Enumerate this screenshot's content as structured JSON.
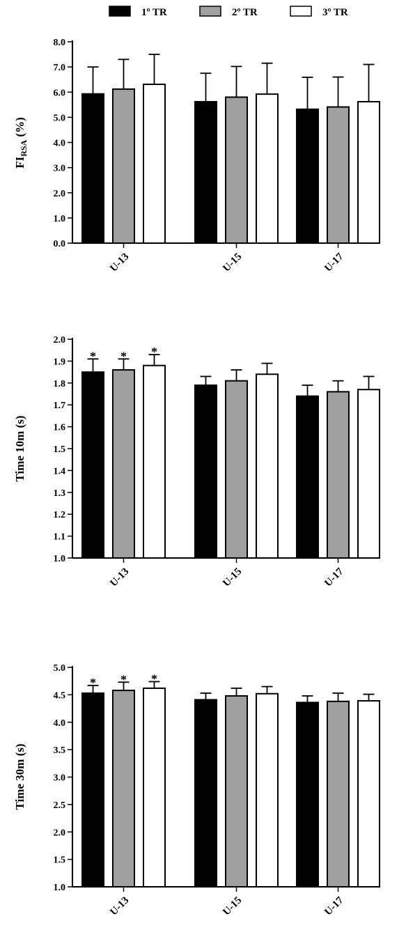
{
  "legend": [
    {
      "label": "1º TR",
      "color": "#000000"
    },
    {
      "label": "2º TR",
      "color": "#a0a0a0"
    },
    {
      "label": "3º TR",
      "color": "#ffffff"
    }
  ],
  "chart_data": [
    {
      "type": "bar",
      "ylabel_main": "FI",
      "ylabel_sub": "RSA",
      "ylabel_rest": " (%)",
      "categories": [
        "U-13",
        "U-15",
        "U-17"
      ],
      "ylim": [
        0.0,
        8.0
      ],
      "yticks": [
        "0.0",
        "1.0",
        "2.0",
        "3.0",
        "4.0",
        "5.0",
        "6.0",
        "7.0",
        "8.0"
      ],
      "series": [
        {
          "name": "1º TR",
          "values": [
            5.93,
            5.62,
            5.32
          ],
          "errors": [
            1.07,
            1.13,
            1.27
          ]
        },
        {
          "name": "2º TR",
          "values": [
            6.12,
            5.8,
            5.41
          ],
          "errors": [
            1.18,
            1.22,
            1.19
          ]
        },
        {
          "name": "3º TR",
          "values": [
            6.31,
            5.92,
            5.62
          ],
          "errors": [
            1.19,
            1.23,
            1.48
          ]
        }
      ],
      "annotations": []
    },
    {
      "type": "bar",
      "ylabel_main": "Time 10m (s)",
      "ylabel_sub": "",
      "ylabel_rest": "",
      "categories": [
        "U-13",
        "U-15",
        "U-17"
      ],
      "ylim": [
        1.0,
        2.0
      ],
      "yticks": [
        "1.0",
        "1.1",
        "1.2",
        "1.3",
        "1.4",
        "1.5",
        "1.6",
        "1.7",
        "1.8",
        "1.9",
        "2.0"
      ],
      "series": [
        {
          "name": "1º TR",
          "values": [
            1.85,
            1.79,
            1.74
          ],
          "errors": [
            0.06,
            0.04,
            0.05
          ]
        },
        {
          "name": "2º TR",
          "values": [
            1.86,
            1.81,
            1.76
          ],
          "errors": [
            0.05,
            0.05,
            0.05
          ]
        },
        {
          "name": "3º TR",
          "values": [
            1.88,
            1.84,
            1.77
          ],
          "errors": [
            0.05,
            0.05,
            0.06
          ]
        }
      ],
      "annotations": [
        {
          "text": "*",
          "series": 0,
          "category": 0
        },
        {
          "text": "*",
          "series": 1,
          "category": 0
        },
        {
          "text": "*",
          "series": 2,
          "category": 0
        }
      ]
    },
    {
      "type": "bar",
      "ylabel_main": "Time 30m (s)",
      "ylabel_sub": "",
      "ylabel_rest": "",
      "categories": [
        "U-13",
        "U-15",
        "U-17"
      ],
      "ylim": [
        1.0,
        5.0
      ],
      "yticks": [
        "1.0",
        "1.5",
        "2.0",
        "2.5",
        "3.0",
        "3.5",
        "4.0",
        "4.5",
        "5.0"
      ],
      "series": [
        {
          "name": "1º TR",
          "values": [
            4.53,
            4.41,
            4.36
          ],
          "errors": [
            0.14,
            0.12,
            0.12
          ]
        },
        {
          "name": "2º TR",
          "values": [
            4.58,
            4.48,
            4.38
          ],
          "errors": [
            0.15,
            0.14,
            0.15
          ]
        },
        {
          "name": "3º TR",
          "values": [
            4.62,
            4.52,
            4.39
          ],
          "errors": [
            0.12,
            0.13,
            0.12
          ]
        }
      ],
      "annotations": [
        {
          "text": "*",
          "series": 0,
          "category": 0
        },
        {
          "text": "*",
          "series": 1,
          "category": 0
        },
        {
          "text": "*",
          "series": 2,
          "category": 0
        }
      ]
    }
  ]
}
